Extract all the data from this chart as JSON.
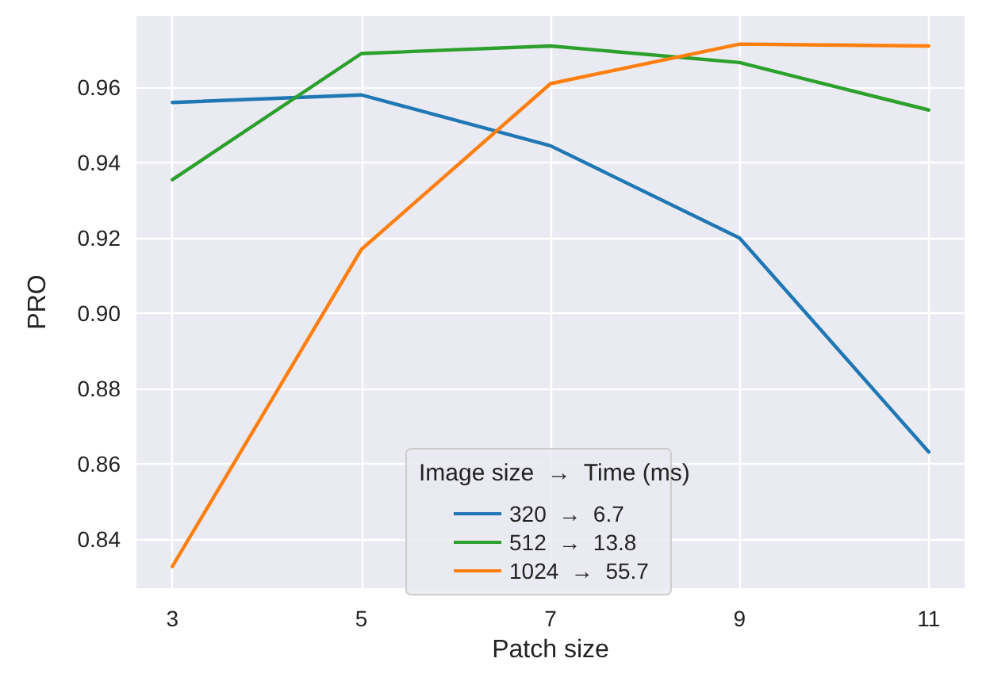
{
  "chart_data": {
    "type": "line",
    "xlabel": "Patch size",
    "ylabel": "PRO",
    "legend_title": "Image size  →  Time (ms)",
    "x": [
      3,
      5,
      7,
      9,
      11
    ],
    "series": [
      {
        "name": "320  →  6.7",
        "color": "#1f77b4",
        "values": [
          0.956,
          0.958,
          0.9445,
          0.92,
          0.8632
        ]
      },
      {
        "name": "512  →  13.8",
        "color": "#2ca02c",
        "values": [
          0.9355,
          0.969,
          0.971,
          0.9666,
          0.954
        ]
      },
      {
        "name": "1024  →  55.7",
        "color": "#ff7f0e",
        "values": [
          0.8328,
          0.917,
          0.961,
          0.9715,
          0.971
        ]
      }
    ],
    "xlim": [
      2.62,
      11.38
    ],
    "xticks": [
      3,
      5,
      7,
      9,
      11
    ],
    "ylim": [
      0.827,
      0.979
    ],
    "yticks": [
      0.84,
      0.86,
      0.88,
      {
        "value": 0.9,
        "label": "0.90"
      },
      0.92,
      0.94,
      0.96
    ],
    "grid": true,
    "legend": "bottom",
    "marker": "none",
    "line_style": "solid"
  }
}
